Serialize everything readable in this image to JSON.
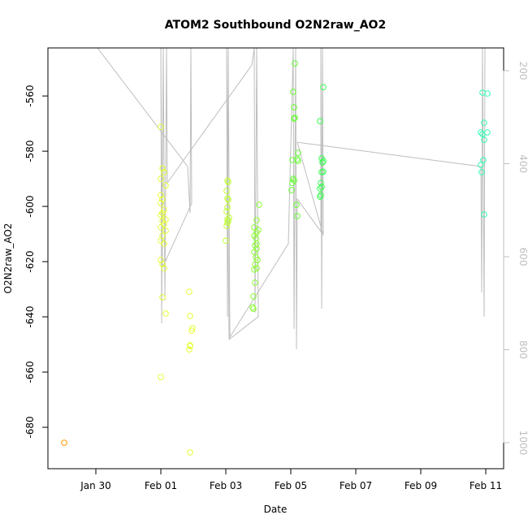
{
  "chart_data": {
    "type": "scatter",
    "title": "ATOM2 Southbound O2N2raw_AO2",
    "xlabel": "Date",
    "ylabel": "O2N2raw_AO2",
    "xlim": [
      28.525,
      42.55
    ],
    "xticks": [
      {
        "value": 30,
        "label": "Jan 30"
      },
      {
        "value": 32,
        "label": "Feb 01"
      },
      {
        "value": 34,
        "label": "Feb 03"
      },
      {
        "value": 36,
        "label": "Feb 05"
      },
      {
        "value": 38,
        "label": "Feb 07"
      },
      {
        "value": 40,
        "label": "Feb 09"
      },
      {
        "value": 42,
        "label": "Feb 11"
      }
    ],
    "ylim": [
      -695,
      -542.6
    ],
    "yticks": [
      -680,
      -660,
      -640,
      -620,
      -600,
      -580,
      -560
    ],
    "y2lim": [
      1056,
      151
    ],
    "y2ticks": [
      200,
      400,
      600,
      800,
      1000
    ],
    "y2color": "#BEBEBE",
    "grid": false,
    "series": [
      {
        "color": "#FF9900",
        "x": [
          29.025
        ],
        "values": [
          -685.6
        ]
      },
      {
        "color": "#E6FF33",
        "x": [
          32.0,
          32.05,
          32.1,
          32.0,
          32.15,
          32.0,
          32.05,
          32.0,
          32.1,
          32.05,
          32.0,
          32.15,
          32.05,
          32.1,
          32.0,
          32.15,
          32.05,
          32.0,
          32.1,
          32.0,
          32.05,
          32.1,
          32.05,
          32.15,
          32.0,
          32.875,
          32.9,
          32.975,
          32.95,
          32.9,
          32.875,
          32.9,
          32.9
        ],
        "values": [
          -571.2,
          -586.2,
          -587.6,
          -590,
          -592.4,
          -595.9,
          -597.4,
          -598.8,
          -601.2,
          -602.4,
          -603.2,
          -604.7,
          -605.3,
          -606.5,
          -607.6,
          -608.8,
          -610.6,
          -612.4,
          -613.5,
          -619.4,
          -620.9,
          -622.4,
          -632.9,
          -638.8,
          -661.8,
          -630.9,
          -639.7,
          -644.1,
          -645,
          -650.6,
          -651.8,
          -650.3,
          -689.1
        ]
      },
      {
        "color": "#BFFF33",
        "x": [
          34.05,
          34.075,
          34.025,
          34.05,
          34.075,
          34.05,
          34.025,
          34.1,
          34.05,
          34.075,
          34.05,
          34.025,
          34.0
        ],
        "values": [
          -590.6,
          -591.2,
          -594.4,
          -597.1,
          -597.6,
          -600.3,
          -601.8,
          -604.1,
          -604.7,
          -605.3,
          -605.9,
          -607.1,
          -612.4
        ]
      },
      {
        "color": "#8CFF33",
        "x": [
          35.025,
          34.95,
          34.875,
          35.0,
          34.95,
          34.875,
          34.925,
          34.95,
          34.9,
          34.95,
          34.875,
          34.925,
          34.975,
          34.9,
          34.95,
          34.875,
          34.9,
          34.85,
          34.825,
          34.85
        ],
        "values": [
          -599.4,
          -605,
          -607.6,
          -608.5,
          -609.4,
          -610.6,
          -611.5,
          -613.5,
          -614.1,
          -615.3,
          -616.5,
          -618.5,
          -619.4,
          -620.9,
          -622.4,
          -622.9,
          -627.6,
          -632.6,
          -636.5,
          -637.1
        ]
      },
      {
        "color": "#66FF33",
        "x": [
          36.125,
          36.075,
          36.1,
          36.125,
          36.1,
          36.225,
          36.2,
          36.05,
          36.225,
          36.075,
          36.1,
          36.05,
          36.025,
          36.175,
          36.2
        ],
        "values": [
          -548.2,
          -558.5,
          -564.1,
          -567.9,
          -568.2,
          -580.6,
          -582.9,
          -583.2,
          -583.5,
          -590,
          -590.6,
          -591.5,
          -594.1,
          -599.4,
          -603.5
        ]
      },
      {
        "color": "#33FF4D",
        "x": [
          37.0,
          36.9,
          36.95,
          37.0,
          36.975,
          37.0,
          36.95,
          36.925,
          36.95,
          36.9,
          36.925,
          36.9
        ],
        "values": [
          -556.8,
          -569.1,
          -582.6,
          -583.5,
          -584.1,
          -587.4,
          -587.6,
          -591.5,
          -592.9,
          -593.5,
          -595.9,
          -596.5
        ]
      },
      {
        "color": "#33FFB3",
        "x": [
          41.9,
          42.05,
          41.95,
          41.85,
          41.9,
          41.95,
          42.05,
          41.925,
          41.85,
          41.875,
          41.95
        ],
        "values": [
          -558.8,
          -559.1,
          -569.7,
          -573.2,
          -573.8,
          -575.9,
          -573.2,
          -583.2,
          -585,
          -587.6,
          -602.9
        ]
      },
      {
        "type": "line",
        "axis": "y2",
        "color": "#BEBEBE",
        "x": [
          30.05,
          32.825,
          32.9,
          32.925,
          32.95,
          32.05,
          32.0,
          32.025,
          32.075,
          32.125,
          32.175,
          32.2,
          34.8,
          34.875,
          34.9,
          34.95,
          35.0,
          34.1,
          34.025,
          34.05,
          34.075,
          34.125,
          35.925,
          36.075,
          36.1,
          36.15,
          36.175,
          36.2,
          36.925,
          36.925,
          36.95,
          36.975,
          37.0,
          36.2,
          41.85,
          41.875,
          41.9,
          41.95,
          41.975
        ],
        "values": [
          151,
          406,
          506,
          151,
          485,
          624,
          151,
          743,
          151,
          694,
          151,
          441,
          188,
          151,
          720,
          151,
          729,
          778,
          151,
          729,
          151,
          773,
          572,
          151,
          755,
          151,
          799,
          476,
          546,
          151,
          712,
          151,
          554,
          354,
          406,
          677,
          151,
          729,
          151
        ]
      }
    ]
  }
}
